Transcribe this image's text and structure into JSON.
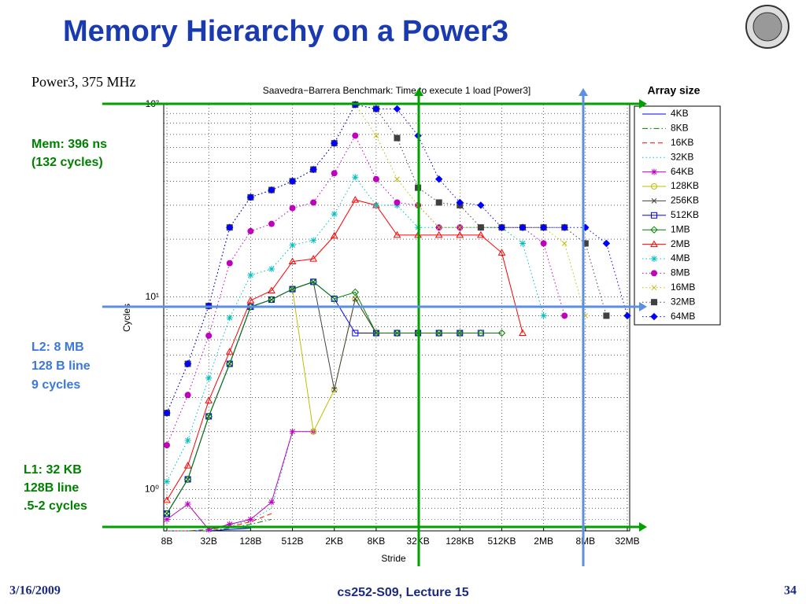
{
  "slide": {
    "title": "Memory Hierarchy on a Power3",
    "subtitle": "Power3, 375 MHz",
    "footer_date": "3/16/2009",
    "footer_course": "cs252-S09, Lecture 15",
    "page_number": "34"
  },
  "chart_data": {
    "type": "line",
    "title": "Saavedra−Barrera Benchmark: Time to execute 1 load [Power3]",
    "x_label": "Stride",
    "y_label": "Cycles",
    "legend_title": "Array size",
    "legend": "right",
    "grid": true,
    "y_log": true,
    "categories": [
      "8B",
      null,
      "32B",
      null,
      "128B",
      null,
      "512B",
      null,
      "2KB",
      null,
      "8KB",
      null,
      "32KB",
      null,
      "128KB",
      null,
      "512KB",
      null,
      "2MB",
      null,
      "8MB",
      null,
      "32MB"
    ],
    "ylim": [
      0.61,
      100
    ],
    "yticks": [
      {
        "value": 1,
        "label": "10⁰"
      },
      {
        "value": 10,
        "label": "10¹"
      },
      {
        "value": 100,
        "label": "10²"
      }
    ],
    "minor_yticks": [
      0.7,
      0.8,
      0.9,
      2,
      3,
      4,
      5,
      6,
      7,
      8,
      9,
      20,
      30,
      40,
      50,
      60,
      70,
      80,
      90
    ],
    "annotations": [
      [
        "Mem: 396 ns",
        "(132 cycles)"
      ],
      [
        "L2: 8 MB",
        "128 B line",
        "9 cycles"
      ],
      [
        "L1: 32 KB",
        "128B line",
        ".5-2 cycles"
      ]
    ],
    "series": [
      {
        "name": "4KB",
        "color": "#0000ff",
        "dash": "solid",
        "marker": "none",
        "values": [
          0.61,
          0.61,
          0.61,
          0.62,
          0.63,
          null,
          null,
          null,
          null,
          null,
          null,
          null,
          null,
          null,
          null,
          null,
          null,
          null,
          null,
          null,
          null,
          null,
          null
        ]
      },
      {
        "name": "8KB",
        "color": "#008000",
        "dash": "dashdot",
        "marker": "none",
        "values": [
          0.61,
          0.61,
          0.61,
          0.63,
          0.66,
          0.7,
          null,
          null,
          null,
          null,
          null,
          null,
          null,
          null,
          null,
          null,
          null,
          null,
          null,
          null,
          null,
          null,
          null
        ]
      },
      {
        "name": "16KB",
        "color": "#ff0000",
        "dash": "dashed",
        "marker": "none",
        "values": [
          0.61,
          0.61,
          0.62,
          0.64,
          0.68,
          0.75,
          null,
          null,
          null,
          null,
          null,
          null,
          null,
          null,
          null,
          null,
          null,
          null,
          null,
          null,
          null,
          null,
          null
        ]
      },
      {
        "name": "32KB",
        "color": "#00bfbf",
        "dash": "dotted",
        "marker": "none",
        "values": [
          0.61,
          0.61,
          0.62,
          0.65,
          0.69,
          0.8,
          2.0,
          2.0,
          null,
          null,
          null,
          null,
          null,
          null,
          null,
          null,
          null,
          null,
          null,
          null,
          null,
          null,
          null
        ]
      },
      {
        "name": "64KB",
        "color": "#bf00bf",
        "dash": "solid",
        "marker": "star",
        "values": [
          0.7,
          0.84,
          0.62,
          0.66,
          0.7,
          0.86,
          2.0,
          2.0,
          null,
          null,
          null,
          null,
          null,
          null,
          null,
          null,
          null,
          null,
          null,
          null,
          null,
          null,
          null
        ]
      },
      {
        "name": "128KB",
        "color": "#bfbf00",
        "dash": "solid",
        "marker": "circle",
        "values": [
          0.75,
          1.13,
          2.4,
          4.5,
          8.9,
          9.7,
          11,
          2.0,
          3.3,
          9.8,
          6.5,
          6.5,
          6.5,
          6.5,
          null,
          null,
          null,
          null,
          null,
          null,
          null,
          null,
          null
        ]
      },
      {
        "name": "256KB",
        "color": "#404040",
        "dash": "solid",
        "marker": "x",
        "values": [
          0.75,
          1.13,
          2.4,
          4.5,
          8.9,
          9.7,
          11,
          12,
          3.3,
          9.8,
          6.5,
          6.5,
          6.5,
          6.5,
          6.5,
          null,
          null,
          null,
          null,
          null,
          null,
          null,
          null
        ]
      },
      {
        "name": "512KB",
        "color": "#0000ff",
        "dash": "solid",
        "marker": "square",
        "values": [
          0.75,
          1.13,
          2.4,
          4.5,
          8.9,
          9.7,
          11,
          12,
          9.8,
          6.5,
          6.5,
          6.5,
          6.5,
          6.5,
          6.5,
          6.5,
          null,
          null,
          null,
          null,
          null,
          null,
          null
        ]
      },
      {
        "name": "1MB",
        "color": "#008000",
        "dash": "solid",
        "marker": "diamond",
        "values": [
          0.75,
          1.13,
          2.4,
          4.5,
          8.9,
          9.7,
          11,
          12,
          9.8,
          10.6,
          6.5,
          6.5,
          6.5,
          6.5,
          6.5,
          6.5,
          6.5,
          null,
          null,
          null,
          null,
          null,
          null
        ]
      },
      {
        "name": "2MB",
        "color": "#ff0000",
        "dash": "solid",
        "marker": "triangle",
        "values": [
          0.88,
          1.33,
          2.9,
          5.2,
          9.6,
          10.8,
          15.3,
          15.8,
          20.8,
          32,
          30,
          21,
          21,
          21,
          21,
          21,
          17,
          6.5,
          null,
          null,
          null,
          null,
          null
        ]
      },
      {
        "name": "4MB",
        "color": "#00bfbf",
        "dash": "dotted",
        "marker": "star",
        "values": [
          1.1,
          1.8,
          3.8,
          7.8,
          13,
          14,
          18.6,
          19.7,
          27,
          42,
          30,
          30,
          23,
          23,
          23,
          23,
          23,
          19,
          8,
          null,
          null,
          null,
          null
        ]
      },
      {
        "name": "8MB",
        "color": "#bf00bf",
        "dash": "dotted",
        "marker": "circle",
        "filled": true,
        "values": [
          1.7,
          3.1,
          6.3,
          15,
          22,
          24,
          29,
          31,
          44,
          69,
          41,
          31,
          30,
          23,
          23,
          23,
          23,
          23,
          19,
          8,
          null,
          null,
          null
        ]
      },
      {
        "name": "16MB",
        "color": "#bfbf00",
        "dash": "dotted",
        "marker": "x",
        "values": [
          2.5,
          4.5,
          9,
          23,
          33,
          36,
          40,
          46,
          63,
          100,
          69,
          41,
          30,
          23,
          23,
          23,
          23,
          23,
          23,
          19,
          8,
          null,
          null
        ]
      },
      {
        "name": "32MB",
        "color": "#404040",
        "dash": "dotted",
        "marker": "square",
        "filled": true,
        "values": [
          2.5,
          4.5,
          9,
          23,
          33,
          36,
          40,
          46,
          63,
          100,
          95,
          67,
          37,
          31,
          30,
          23,
          23,
          23,
          23,
          23,
          19,
          8,
          null
        ]
      },
      {
        "name": "64MB",
        "color": "#0000ff",
        "dash": "dotted",
        "marker": "diamond",
        "filled": true,
        "values": [
          2.5,
          4.5,
          9,
          23,
          33,
          36,
          40,
          46,
          63,
          100,
          95,
          95,
          69,
          41,
          31,
          30,
          23,
          23,
          23,
          23,
          23,
          19,
          8
        ]
      }
    ]
  }
}
